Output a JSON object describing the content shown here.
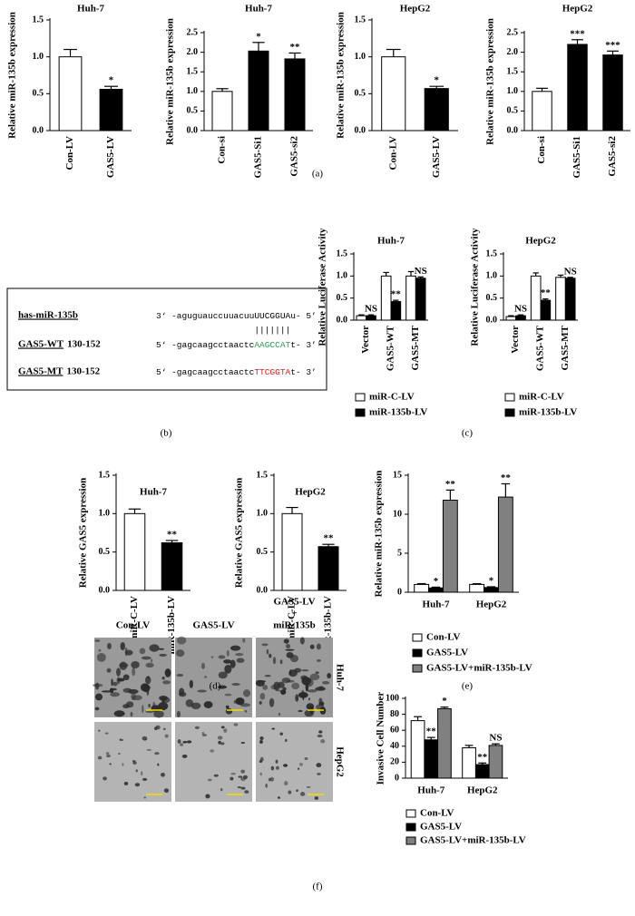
{
  "chart_data": [
    {
      "type": "bar",
      "title": "Huh-7",
      "y_label": "Relative miR-135b expression",
      "categories": [
        "Con-LV",
        "GAS5-LV"
      ],
      "values": [
        1.0,
        0.56
      ],
      "errors": [
        0.1,
        0.04
      ],
      "colors": [
        "#ffffff",
        "#000000"
      ],
      "annotations": [
        null,
        "*"
      ],
      "ylim": [
        0,
        1.5
      ],
      "yticks": [
        {
          "value": 0,
          "label": "0.0"
        },
        0.5,
        {
          "value": 1,
          "label": "1.0"
        },
        1.5
      ]
    },
    {
      "type": "bar",
      "title": "Huh-7",
      "y_label": "Relative miR-135b expression",
      "categories": [
        "Con-si",
        "GAS5-Si1",
        "GAS5-si2"
      ],
      "values": [
        1.0,
        2.03,
        1.83
      ],
      "errors": [
        0.07,
        0.22,
        0.15
      ],
      "colors": [
        "#ffffff",
        "#000000",
        "#000000"
      ],
      "annotations": [
        null,
        "*",
        "**"
      ],
      "ylim": [
        0,
        2.5
      ],
      "yticks": [
        {
          "value": 0,
          "label": "0.0"
        },
        0.5,
        {
          "value": 1,
          "label": "1.0"
        },
        1.5,
        {
          "value": 2,
          "label": "2.0"
        },
        2.5
      ]
    },
    {
      "type": "bar",
      "title": "HepG2",
      "y_label": "Relative miR-135b expression",
      "categories": [
        "Con-LV",
        "GAS5-LV"
      ],
      "values": [
        1.0,
        0.57
      ],
      "errors": [
        0.1,
        0.03
      ],
      "colors": [
        "#ffffff",
        "#000000"
      ],
      "annotations": [
        null,
        "*"
      ],
      "ylim": [
        0,
        1.5
      ],
      "yticks": [
        {
          "value": 0,
          "label": "0.0"
        },
        0.5,
        {
          "value": 1,
          "label": "1.0"
        },
        1.5
      ]
    },
    {
      "type": "bar",
      "title": "HepG2",
      "y_label": "Relative miR-135b expression",
      "categories": [
        "Con-si",
        "GAS5-Si1",
        "GAS5-si2"
      ],
      "values": [
        1.0,
        2.2,
        1.93
      ],
      "errors": [
        0.08,
        0.12,
        0.1
      ],
      "colors": [
        "#ffffff",
        "#000000",
        "#000000"
      ],
      "annotations": [
        null,
        "***",
        "***"
      ],
      "ylim": [
        0,
        2.5
      ],
      "yticks": [
        {
          "value": 0,
          "label": "0.0"
        },
        0.5,
        {
          "value": 1,
          "label": "1.0"
        },
        1.5,
        {
          "value": 2,
          "label": "2.0"
        },
        2.5
      ]
    },
    {
      "type": "grouped_bar",
      "title": "Huh-7",
      "y_label": "Relative Luciferase Activity",
      "categories": [
        "Vector",
        "GAS5-WT",
        "GAS5-MT"
      ],
      "series": [
        {
          "name": "miR-C-LV",
          "color": "#ffffff",
          "values": [
            0.1,
            1.0,
            1.0
          ],
          "errors": [
            0.02,
            0.08,
            0.1
          ],
          "annotations": [
            null,
            null,
            null
          ]
        },
        {
          "name": "miR-135b-LV",
          "color": "#000000",
          "values": [
            0.1,
            0.42,
            0.95
          ],
          "errors": [
            0.02,
            0.03,
            0.03
          ],
          "annotations": [
            "NS",
            "**",
            "NS"
          ]
        }
      ],
      "ylim": [
        0,
        1.5
      ],
      "yticks": [
        {
          "value": 0,
          "label": "0.0"
        },
        0.5,
        {
          "value": 1,
          "label": "1.0"
        },
        1.5
      ]
    },
    {
      "type": "grouped_bar",
      "title": "HepG2",
      "y_label": "Relative Luciferase Activity",
      "categories": [
        "Vector",
        "GAS5-WT",
        "GAS5-MT"
      ],
      "series": [
        {
          "name": "miR-C-LV",
          "color": "#ffffff",
          "values": [
            0.08,
            1.0,
            0.97
          ],
          "errors": [
            0.02,
            0.07,
            0.05
          ],
          "annotations": [
            null,
            null,
            null
          ]
        },
        {
          "name": "miR-135b-LV",
          "color": "#000000",
          "values": [
            0.1,
            0.45,
            0.95
          ],
          "errors": [
            0.02,
            0.03,
            0.02
          ],
          "annotations": [
            "NS",
            "**",
            "NS"
          ]
        }
      ],
      "ylim": [
        0,
        1.5
      ],
      "yticks": [
        {
          "value": 0,
          "label": "0.0"
        },
        0.5,
        {
          "value": 1,
          "label": "1.0"
        },
        1.5
      ]
    },
    {
      "type": "bar",
      "title": "Huh-7",
      "y_label": "Relative GAS5 expression",
      "categories": [
        "miR-C-LV",
        "miR-135b-LV"
      ],
      "values": [
        1.0,
        0.62
      ],
      "errors": [
        0.06,
        0.03
      ],
      "colors": [
        "#ffffff",
        "#000000"
      ],
      "annotations": [
        null,
        "**"
      ],
      "ylim": [
        0,
        1.5
      ],
      "yticks": [
        {
          "value": 0,
          "label": "0.0"
        },
        0.5,
        {
          "value": 1,
          "label": "1.0"
        },
        1.5
      ]
    },
    {
      "type": "bar",
      "title": "HepG2",
      "y_label": "Relative GAS5 expression",
      "categories": [
        "miR-C-LV",
        "miR-135b-LV"
      ],
      "values": [
        1.0,
        0.57
      ],
      "errors": [
        0.08,
        0.03
      ],
      "colors": [
        "#ffffff",
        "#000000"
      ],
      "annotations": [
        null,
        "**"
      ],
      "ylim": [
        0,
        1.5
      ],
      "yticks": [
        {
          "value": 0,
          "label": "0.0"
        },
        0.5,
        {
          "value": 1,
          "label": "1.0"
        },
        1.5
      ]
    },
    {
      "type": "grouped_bar",
      "y_label": "Relative miR-135b expression",
      "categories": [
        "Huh-7",
        "HepG2"
      ],
      "series": [
        {
          "name": "Con-LV",
          "color": "#ffffff",
          "values": [
            1.0,
            1.0
          ],
          "errors": [
            0.1,
            0.1
          ],
          "annotations": [
            null,
            null
          ]
        },
        {
          "name": "GAS5-LV",
          "color": "#000000",
          "values": [
            0.55,
            0.6
          ],
          "errors": [
            0.1,
            0.1
          ],
          "annotations": [
            "*",
            "*"
          ]
        },
        {
          "name": "GAS5-LV+miR-135b-LV",
          "color": "#808080",
          "values": [
            11.8,
            12.2
          ],
          "errors": [
            1.3,
            1.7
          ],
          "annotations": [
            "**",
            "**"
          ]
        }
      ],
      "ylim": [
        0,
        15
      ],
      "yticks": [
        0,
        5,
        10,
        15
      ]
    },
    {
      "type": "grouped_bar",
      "y_label": "Invasive Cell Number",
      "categories": [
        "Huh-7",
        "HepG2"
      ],
      "series": [
        {
          "name": "Con-LV",
          "color": "#ffffff",
          "values": [
            72,
            38
          ],
          "errors": [
            5,
            3
          ],
          "annotations": [
            null,
            null
          ]
        },
        {
          "name": "GAS5-LV",
          "color": "#000000",
          "values": [
            48,
            17
          ],
          "errors": [
            3,
            2
          ],
          "annotations": [
            "**",
            "**"
          ]
        },
        {
          "name": "GAS5-LV+miR-135b-LV",
          "color": "#808080",
          "values": [
            87,
            41
          ],
          "errors": [
            2,
            2
          ],
          "annotations": [
            "*",
            "NS"
          ]
        }
      ],
      "ylim": [
        0,
        100
      ],
      "yticks": [
        0,
        20,
        40,
        60,
        80,
        100
      ]
    }
  ],
  "alignment": {
    "pairing": "|||||||",
    "rows": [
      {
        "name": "has-miR-135b",
        "sequence": [
          "3‘ -aguguauccuuacuu",
          "UUCGGUA",
          "u- 5’"
        ],
        "highlight_color": "#000000"
      },
      {
        "name": "GAS5-WT",
        "range": "130-152",
        "sequence": [
          "5‘ -gagcaagcctaactc",
          "AAGCCAT",
          "t- 3’"
        ],
        "highlight_color": "#2e9e4f"
      },
      {
        "name": "GAS5-MT",
        "range": "130-152",
        "sequence": [
          "5‘ -gagcaagcctaactc",
          "TTCGGTA",
          "t- 3’"
        ],
        "highlight_color": "#e02020"
      }
    ]
  },
  "micrographs": {
    "columns": [
      [
        "Con-LV"
      ],
      [
        "GAS5-LV"
      ],
      [
        "GAS5-LV",
        "+",
        "miR-135b"
      ]
    ],
    "rows": [
      "Huh-7",
      "HepG2"
    ]
  },
  "panel_labels": [
    "(a)",
    "(b)",
    "(c)",
    "(d)",
    "(e)",
    "(f)"
  ]
}
